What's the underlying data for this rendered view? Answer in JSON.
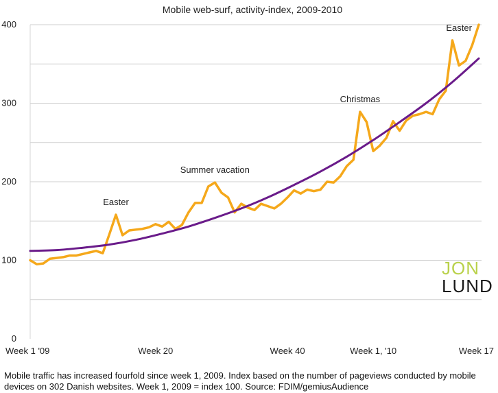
{
  "chart_data": {
    "type": "line",
    "title": "Mobile web-surf, activity-index, 2009-2010",
    "xlabel": "",
    "ylabel": "",
    "ylim": [
      0,
      400
    ],
    "y_ticks": [
      "0",
      "100",
      "200",
      "300",
      "400"
    ],
    "x_ticks": [
      {
        "x": 1,
        "label": "Week 1 '09"
      },
      {
        "x": 20,
        "label": "Week 20"
      },
      {
        "x": 40,
        "label": "Week 40"
      },
      {
        "x": 53,
        "label": "Week 1, '10"
      },
      {
        "x": 69,
        "label": "Week 17"
      }
    ],
    "grid": "horizontal",
    "series": [
      {
        "color": "#f5a81b",
        "points": [
          [
            1,
            100
          ],
          [
            2,
            95
          ],
          [
            3,
            96
          ],
          [
            4,
            102
          ],
          [
            5,
            103
          ],
          [
            6,
            104
          ],
          [
            7,
            106
          ],
          [
            8,
            106
          ],
          [
            9,
            108
          ],
          [
            10,
            110
          ],
          [
            11,
            112
          ],
          [
            12,
            109
          ],
          [
            13,
            133
          ],
          [
            14,
            158
          ],
          [
            15,
            132
          ],
          [
            16,
            138
          ],
          [
            17,
            139
          ],
          [
            18,
            140
          ],
          [
            19,
            142
          ],
          [
            20,
            146
          ],
          [
            21,
            143
          ],
          [
            22,
            149
          ],
          [
            23,
            140
          ],
          [
            24,
            145
          ],
          [
            25,
            161
          ],
          [
            26,
            173
          ],
          [
            27,
            173
          ],
          [
            28,
            194
          ],
          [
            29,
            199
          ],
          [
            30,
            186
          ],
          [
            31,
            180
          ],
          [
            32,
            161
          ],
          [
            33,
            172
          ],
          [
            34,
            167
          ],
          [
            35,
            164
          ],
          [
            36,
            172
          ],
          [
            37,
            169
          ],
          [
            38,
            166
          ],
          [
            39,
            172
          ],
          [
            40,
            180
          ],
          [
            41,
            189
          ],
          [
            42,
            185
          ],
          [
            43,
            190
          ],
          [
            44,
            188
          ],
          [
            45,
            190
          ],
          [
            46,
            200
          ],
          [
            47,
            199
          ],
          [
            48,
            207
          ],
          [
            49,
            220
          ],
          [
            50,
            228
          ],
          [
            51,
            289
          ],
          [
            52,
            276
          ],
          [
            53,
            239
          ],
          [
            54,
            246
          ],
          [
            55,
            256
          ],
          [
            56,
            277
          ],
          [
            57,
            265
          ],
          [
            58,
            278
          ],
          [
            59,
            284
          ],
          [
            60,
            286
          ],
          [
            61,
            289
          ],
          [
            62,
            286
          ],
          [
            63,
            305
          ],
          [
            64,
            316
          ],
          [
            65,
            380
          ],
          [
            66,
            348
          ],
          [
            67,
            354
          ],
          [
            68,
            374
          ],
          [
            69,
            400
          ]
        ]
      },
      {
        "color": "#6a1b8a",
        "type": "trend",
        "points": [
          [
            1,
            112
          ],
          [
            5,
            113
          ],
          [
            9,
            116
          ],
          [
            13,
            120
          ],
          [
            17,
            126
          ],
          [
            21,
            134
          ],
          [
            25,
            143
          ],
          [
            29,
            154
          ],
          [
            33,
            166
          ],
          [
            37,
            180
          ],
          [
            41,
            196
          ],
          [
            45,
            213
          ],
          [
            49,
            232
          ],
          [
            53,
            253
          ],
          [
            57,
            276
          ],
          [
            61,
            300
          ],
          [
            65,
            327
          ],
          [
            69,
            357
          ]
        ]
      }
    ],
    "annotations": [
      {
        "x": 14,
        "y": 158,
        "text": "Easter"
      },
      {
        "x": 29,
        "y": 199,
        "text": "Summer vacation"
      },
      {
        "x": 51,
        "y": 289,
        "text": "Christmas"
      },
      {
        "x": 66,
        "y": 380,
        "text": "Easter"
      }
    ]
  },
  "logo": {
    "line1": "JON",
    "line2": "LUND"
  },
  "caption": "Mobile traffic has increased fourfold since week 1, 2009. Index based on the number of pageviews conducted by mobile devices on 302 Danish websites. Week 1, 2009 = index 100. Source: FDIM/gemiusAudience"
}
